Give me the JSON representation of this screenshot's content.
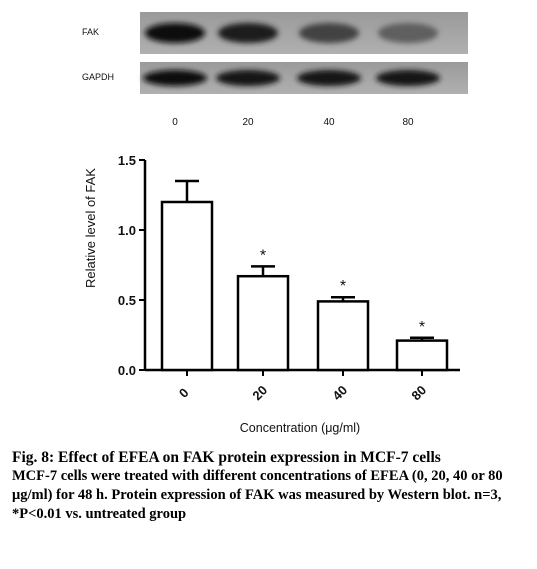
{
  "blot": {
    "rows": [
      {
        "label": "FAK",
        "intensities": [
          0.95,
          0.85,
          0.6,
          0.4
        ]
      },
      {
        "label": "GAPDH",
        "intensities": [
          0.95,
          0.93,
          0.93,
          0.92
        ]
      }
    ],
    "lanes": [
      "0",
      "20",
      "40",
      "80"
    ]
  },
  "chart_data": {
    "type": "bar",
    "categories": [
      "0",
      "20",
      "40",
      "80"
    ],
    "values": [
      1.2,
      0.67,
      0.49,
      0.21
    ],
    "errors": [
      0.15,
      0.07,
      0.03,
      0.02
    ],
    "significance": [
      "",
      "*",
      "*",
      "*"
    ],
    "xlabel": "Concentration (μg/ml)",
    "ylabel": "Relative level of FAK",
    "ylim": [
      0,
      1.5
    ],
    "yticks": [
      "0.0",
      "0.5",
      "1.0",
      "1.5"
    ],
    "grid": false,
    "colors": {
      "bar_fill": "#ffffff",
      "bar_stroke": "#000000"
    }
  },
  "caption": {
    "title": "Fig. 8: Effect of EFEA on FAK protein expression in MCF-7 cells",
    "body": "MCF-7 cells were treated with different concentrations of EFEA (0, 20, 40 or 80 μg/ml) for 48 h. Protein expression of FAK was measured by Western blot. n=3, *P<0.01 vs. untreated group"
  }
}
